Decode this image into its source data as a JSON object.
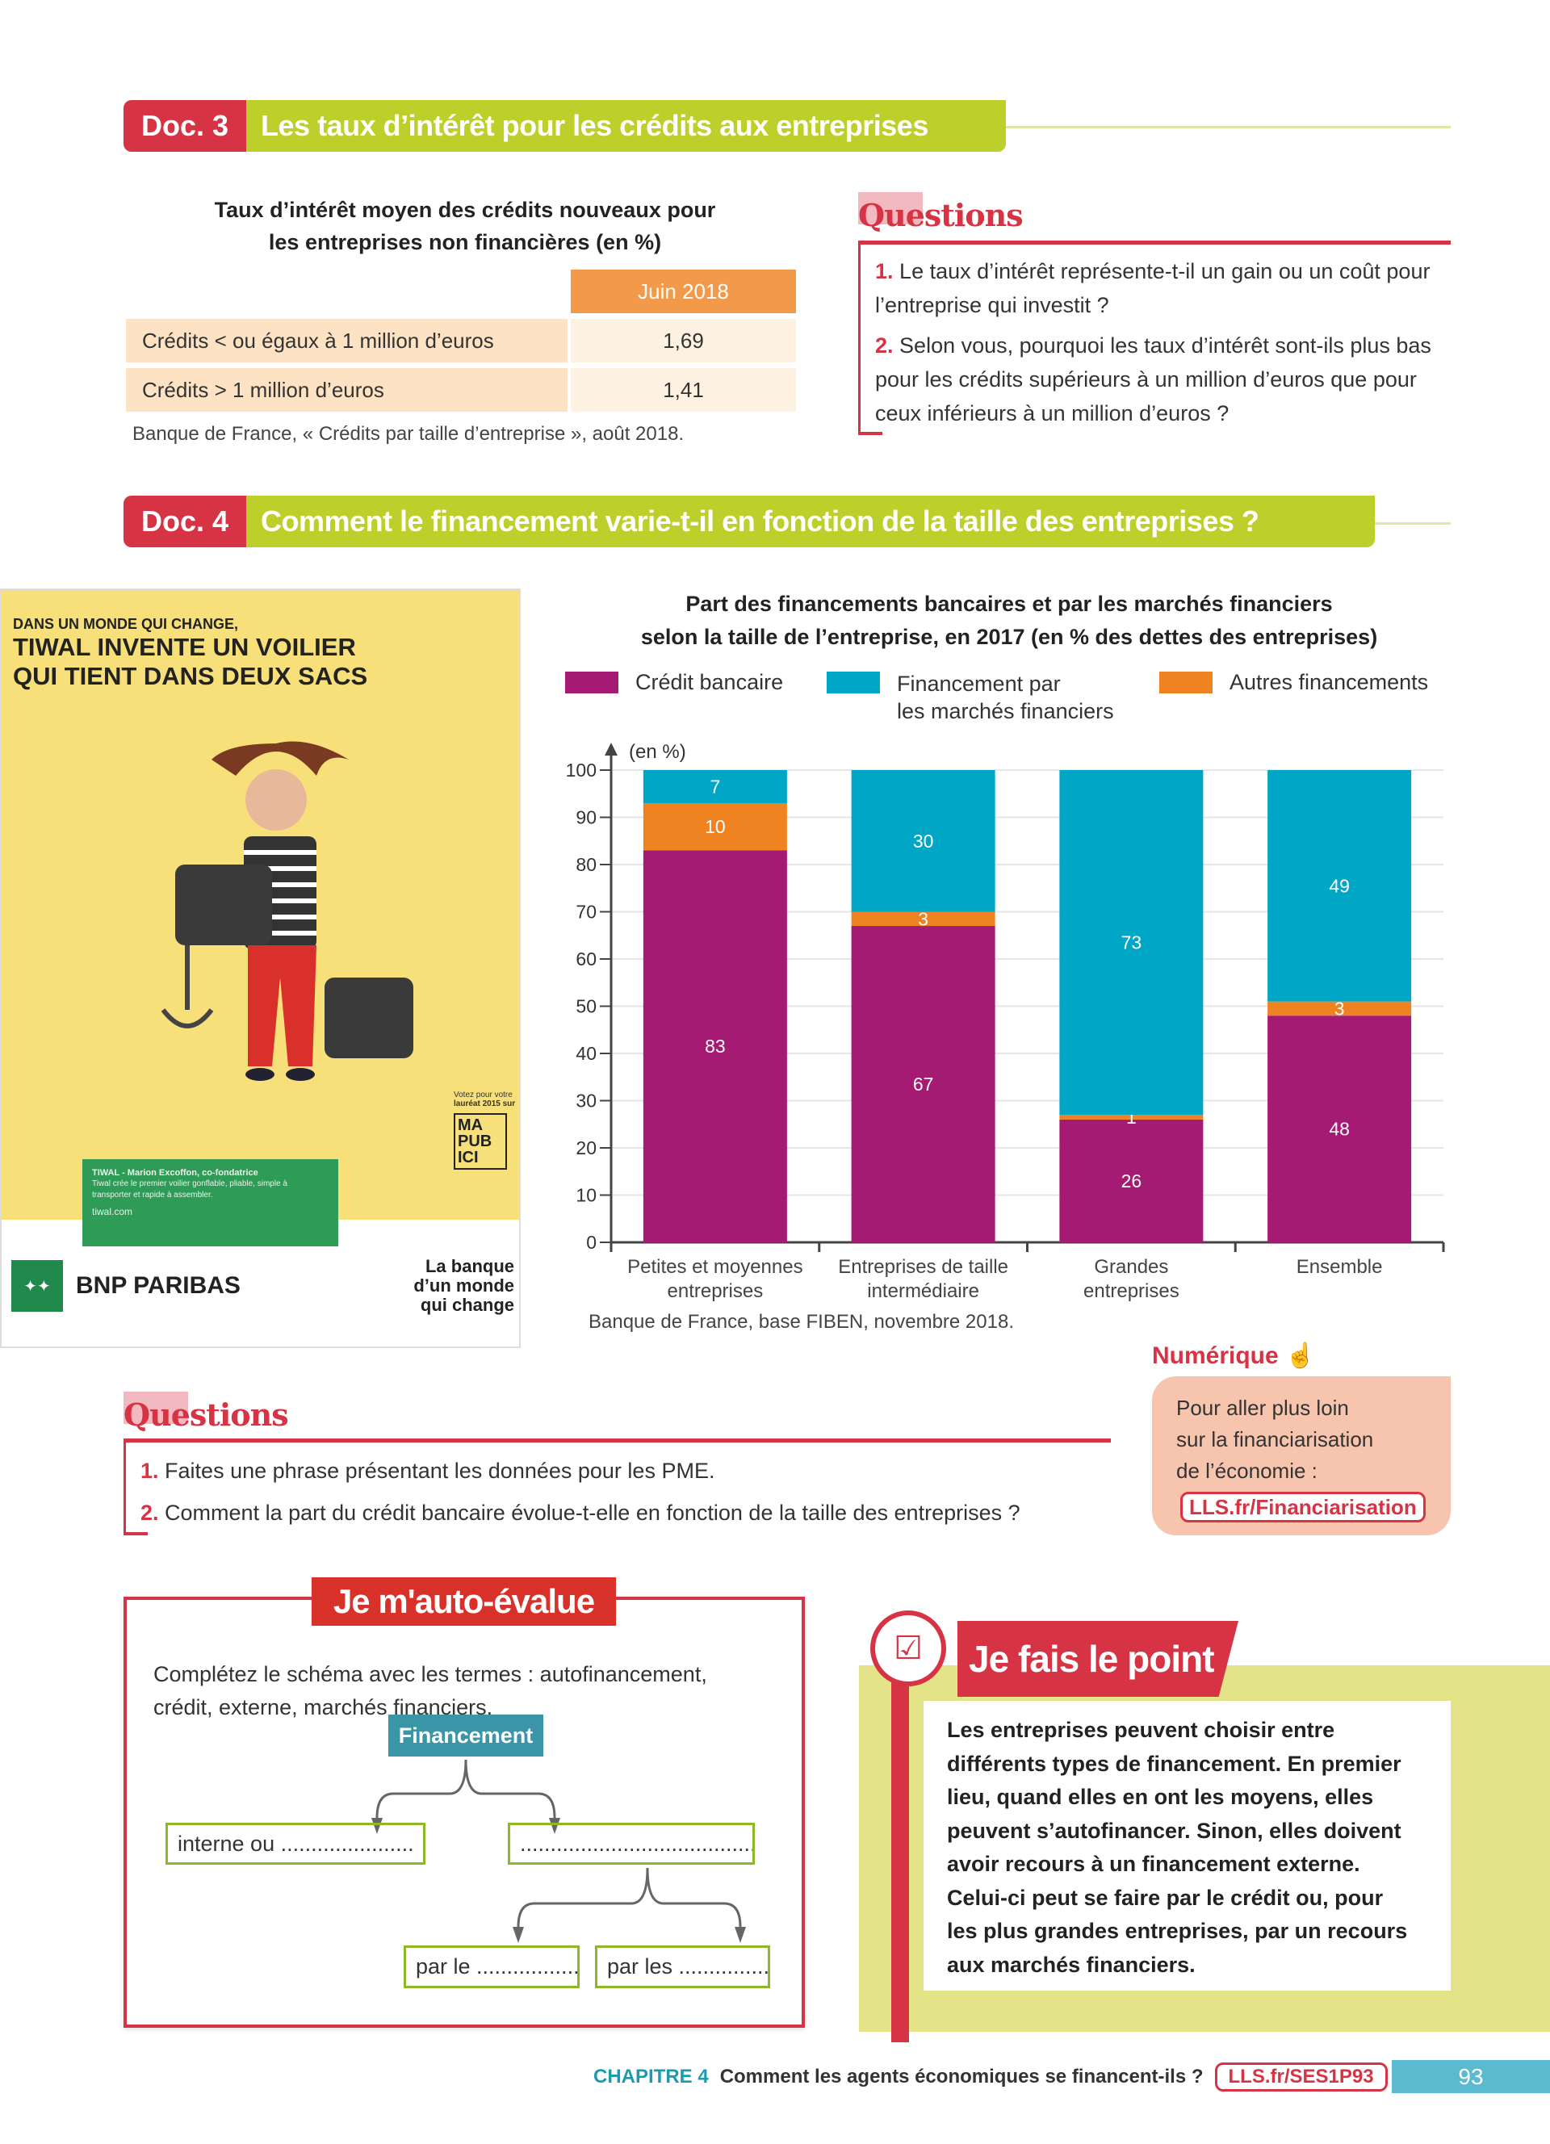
{
  "doc3": {
    "number": "Doc. 3",
    "title": "Les taux d’intérêt pour les crédits aux entreprises",
    "table_title_line1": "Taux d’intérêt moyen des crédits nouveaux pour",
    "table_title_line2": "les entreprises non financières (en %)",
    "table": {
      "column_header": "Juin 2018",
      "rows": [
        {
          "label": "Crédits < ou égaux à 1 million d’euros",
          "value": "1,69"
        },
        {
          "label": "Crédits > 1 million d’euros",
          "value": "1,41"
        }
      ]
    },
    "source": "Banque de France, « Crédits par taille d’entreprise », août 2018.",
    "questions": {
      "title": "Questions",
      "items": [
        {
          "num": "1.",
          "text": "Le taux d’intérêt représente-t-il un gain ou un coût pour l’entreprise qui investit ?"
        },
        {
          "num": "2.",
          "text": "Selon vous, pourquoi les taux d’intérêt sont-ils plus bas pour les crédits supérieurs à un million d’euros que pour ceux inférieurs à un million d’euros ?"
        }
      ]
    }
  },
  "doc4": {
    "number": "Doc. 4",
    "title": "Comment le financement varie-t-il en fonction de la taille des entreprises ?",
    "ad": {
      "line1": "DANS UN MONDE QUI CHANGE,",
      "line2": "TIWAL INVENTE UN VOILIER",
      "line3": "QUI TIENT DANS DEUX SACS",
      "caption_title": "TIWAL - Marion Excoffon, co-fondatrice",
      "caption_text": "Tiwal crée le premier voilier gonflable, pliable, simple à transporter et rapide à assembler.",
      "caption_url": "tiwal.com",
      "vote1": "Votez pour votre",
      "vote2": "lauréat 2015 sur",
      "mapub": "MA PUB ICI",
      "brand": "BNP PARIBAS",
      "slogan1": "La banque",
      "slogan2": "d’un monde",
      "slogan3": "qui change"
    },
    "questions": {
      "title": "Questions",
      "items": [
        {
          "num": "1.",
          "text": "Faites une phrase présentant les données pour les PME."
        },
        {
          "num": "2.",
          "text": "Comment la part du crédit bancaire évolue-t-elle en fonction de la taille des entreprises ?"
        }
      ]
    },
    "numerique": {
      "title": "Numérique",
      "text1": "Pour aller plus loin",
      "text2": "sur la financiarisation",
      "text3": "de l’économie :",
      "link": "LLS.fr/Financiarisation"
    }
  },
  "chart_data": {
    "type": "bar",
    "stacked": true,
    "title_line1": "Part des financements bancaires et par les marchés financiers",
    "title_line2": "selon la taille de l’entreprise, en 2017 (en % des dettes des entreprises)",
    "ylabel": "(en %)",
    "ylim": [
      0,
      100
    ],
    "yticks": [
      0,
      10,
      20,
      30,
      40,
      50,
      60,
      70,
      80,
      90,
      100
    ],
    "grid": true,
    "legend_position": "top",
    "categories": [
      [
        "Petites et moyennes",
        "entreprises"
      ],
      [
        "Entreprises de taille",
        "intermédiaire"
      ],
      [
        "Grandes",
        "entreprises"
      ],
      [
        "Ensemble",
        ""
      ]
    ],
    "series": [
      {
        "name": "Crédit bancaire",
        "color": "#a51a73",
        "values": [
          83,
          67,
          26,
          48
        ]
      },
      {
        "name": "Autres financements",
        "color": "#ef8322",
        "values": [
          10,
          3,
          1,
          3
        ]
      },
      {
        "name": "Financement par les marchés financiers",
        "color": "#00a6c6",
        "values": [
          7,
          30,
          73,
          49
        ]
      }
    ],
    "legend": [
      {
        "label1": "Crédit bancaire",
        "label2": "",
        "color": "#a51a73"
      },
      {
        "label1": "Financement par",
        "label2": "les marchés financiers",
        "color": "#00a6c6"
      },
      {
        "label1": "Autres financements",
        "label2": "",
        "color": "#ef8322"
      }
    ],
    "source": "Banque de France, base FIBEN, novembre 2018."
  },
  "autoeval": {
    "title": "Je m'auto-évalue",
    "instruction1": "Complétez le schéma avec les termes : autofinancement,",
    "instruction2": "crédit, externe, marchés financiers.",
    "root": "Financement",
    "box_left": "interne ou ......................",
    "box_right": "..........................................",
    "box_bl": "par le .................",
    "box_br": "par les ..............."
  },
  "point": {
    "title": "Je fais le point",
    "lines": [
      "Les entreprises peuvent choisir entre",
      "différents types de financement. En premier",
      "lieu, quand elles en ont les moyens, elles",
      "peuvent s’autofinancer. Sinon, elles doivent",
      "avoir recours à un financement externe.",
      "Celui-ci peut se faire par le crédit ou, pour",
      "les plus grandes entreprises, par un recours",
      "aux marchés financiers."
    ]
  },
  "footer": {
    "chapter": "CHAPITRE 4",
    "title": "Comment les agents économiques se financent-ils ?",
    "link": "LLS.fr/SES1P93",
    "page": "93"
  }
}
